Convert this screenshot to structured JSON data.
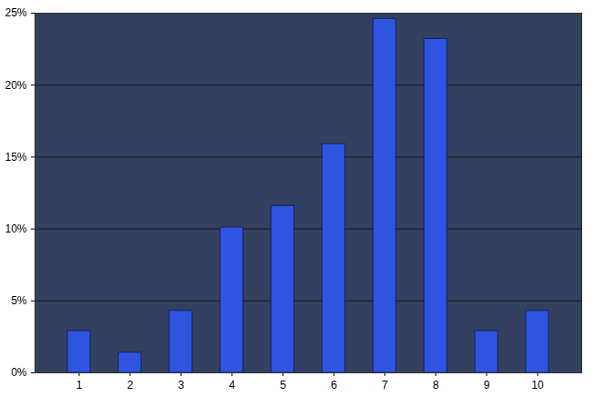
{
  "chart_data": {
    "type": "bar",
    "categories": [
      "1",
      "2",
      "3",
      "4",
      "5",
      "6",
      "7",
      "8",
      "9",
      "10"
    ],
    "values": [
      2.9,
      1.4,
      4.3,
      10.1,
      11.6,
      15.9,
      24.6,
      23.2,
      2.9,
      4.3
    ],
    "color": "#2f55e0",
    "ylim": [
      0,
      25
    ],
    "yticks": [
      {
        "value": 0,
        "label": "0%"
      },
      {
        "value": 5,
        "label": "5%"
      },
      {
        "value": 10,
        "label": "10%"
      },
      {
        "value": 15,
        "label": "15%"
      },
      {
        "value": 20,
        "label": "20%"
      },
      {
        "value": 25,
        "label": "25%"
      }
    ],
    "grid": true
  }
}
